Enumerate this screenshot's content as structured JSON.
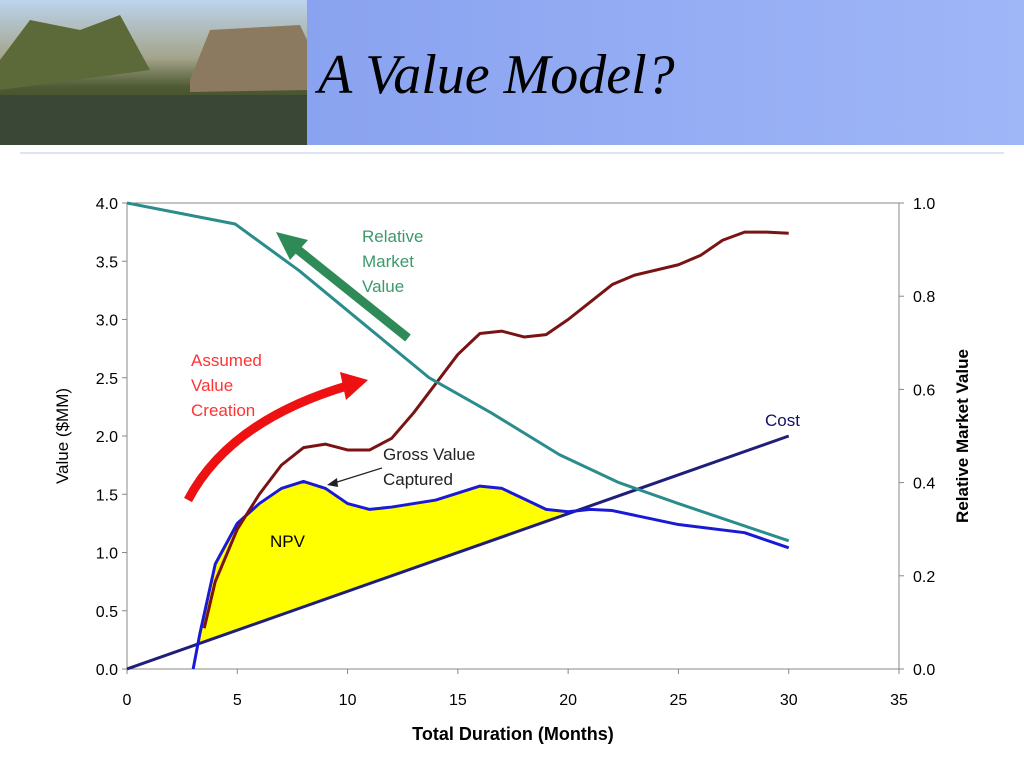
{
  "title": "A Value Model?",
  "chart_data": {
    "type": "line",
    "xlabel": "Total Duration (Months)",
    "ylabel": "Value ($MM)",
    "y2label": "Relative Market Value",
    "xlim": [
      0,
      35
    ],
    "xticks": [
      0,
      5,
      10,
      15,
      20,
      25,
      30,
      35
    ],
    "ylim": [
      0,
      4
    ],
    "yticks": [
      {
        "value": 0,
        "label": "0.0"
      },
      0.5,
      {
        "value": 1,
        "label": "1.0"
      },
      1.5,
      {
        "value": 2,
        "label": "2.0"
      },
      2.5,
      {
        "value": 3,
        "label": "3.0"
      },
      3.5,
      {
        "value": 4,
        "label": "4.0"
      }
    ],
    "y2lim": [
      0,
      1
    ],
    "y2ticks": [
      {
        "value": 0,
        "label": "0.0"
      },
      0.2,
      0.4,
      0.6,
      0.8,
      {
        "value": 1,
        "label": "1.0"
      }
    ],
    "series": [
      {
        "color": "#1f1f7a",
        "x": [
          0,
          30
        ],
        "values": [
          0,
          2
        ]
      },
      {
        "color": "#1a1ad6",
        "x": [
          3,
          3.3,
          4,
          5,
          6,
          7,
          8,
          9,
          10,
          11,
          12,
          14,
          16,
          17,
          18,
          19,
          20,
          21,
          22,
          25,
          28,
          30
        ],
        "values": [
          0,
          0.3,
          0.9,
          1.25,
          1.42,
          1.55,
          1.61,
          1.55,
          1.42,
          1.37,
          1.39,
          1.45,
          1.57,
          1.55,
          1.46,
          1.37,
          1.35,
          1.37,
          1.36,
          1.24,
          1.17,
          1.04
        ]
      },
      {
        "color": "#7a1414",
        "x": [
          3.5,
          4,
          5,
          6,
          7,
          8,
          9,
          10,
          11,
          12,
          13,
          14,
          15,
          16,
          17,
          18,
          19,
          20,
          21,
          22,
          23,
          25,
          26,
          27,
          28,
          29,
          30
        ],
        "values": [
          0.35,
          0.75,
          1.2,
          1.5,
          1.75,
          1.9,
          1.93,
          1.88,
          1.88,
          1.98,
          2.2,
          2.45,
          2.7,
          2.88,
          2.9,
          2.85,
          2.87,
          3.0,
          3.15,
          3.3,
          3.38,
          3.47,
          3.55,
          3.68,
          3.75,
          3.75,
          3.74
        ]
      },
      {
        "color": "#2a8c8c",
        "axis": "y2",
        "x": [
          0,
          4.9,
          7.8,
          11,
          13.7,
          16.5,
          19.6,
          22.3,
          25,
          30
        ],
        "values": [
          1.0,
          0.955,
          0.855,
          0.73,
          0.625,
          0.55,
          0.46,
          0.4,
          0.355,
          0.275
        ]
      }
    ],
    "fill_color": "#ffff00",
    "annotations": [
      {
        "lines": [
          "Relative",
          "Market",
          "Value"
        ],
        "color": "#3a9a6a"
      },
      {
        "lines": [
          "Assumed",
          "Value",
          "Creation"
        ],
        "color": "#ff3333"
      },
      {
        "lines": [
          "Gross Value",
          "Captured"
        ],
        "color": "#222222"
      },
      {
        "lines": [
          "Cost"
        ],
        "color": "#111166"
      },
      {
        "lines": [
          "NPV"
        ],
        "color": "#000000"
      }
    ]
  }
}
